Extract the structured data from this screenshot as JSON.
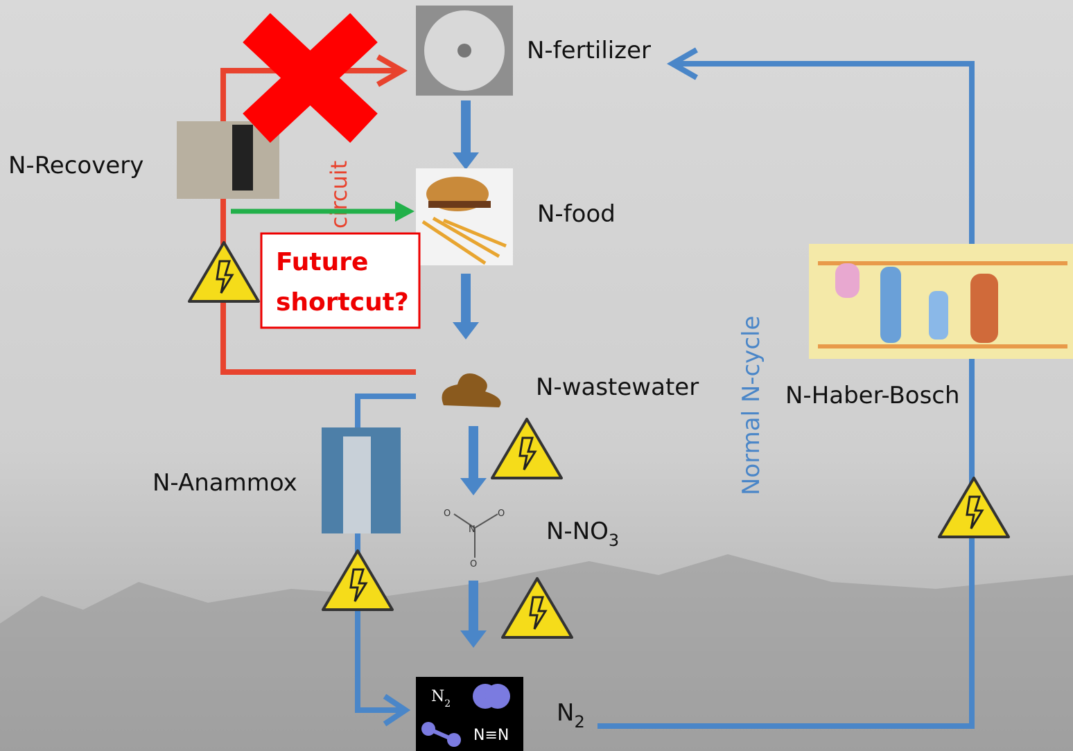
{
  "labels": {
    "fertilizer": "N-fertilizer",
    "recovery": "N-Recovery",
    "food": "N-food",
    "shortcut_line1": "Future",
    "shortcut_line2": "shortcut?",
    "circuit": "circuit",
    "wastewater": "N-wastewater",
    "anammox": "N-Anammox",
    "nitrate": {
      "text": "N-NO",
      "sub": "3"
    },
    "dinitrogen": {
      "text": "N",
      "sub": "2"
    },
    "normal_cycle": "Normal N-cycle",
    "haber_bosch": "N-Haber-Bosch"
  },
  "n2_image": {
    "formula": "N",
    "formula_sub": "2",
    "bond": "N≡N"
  }
}
